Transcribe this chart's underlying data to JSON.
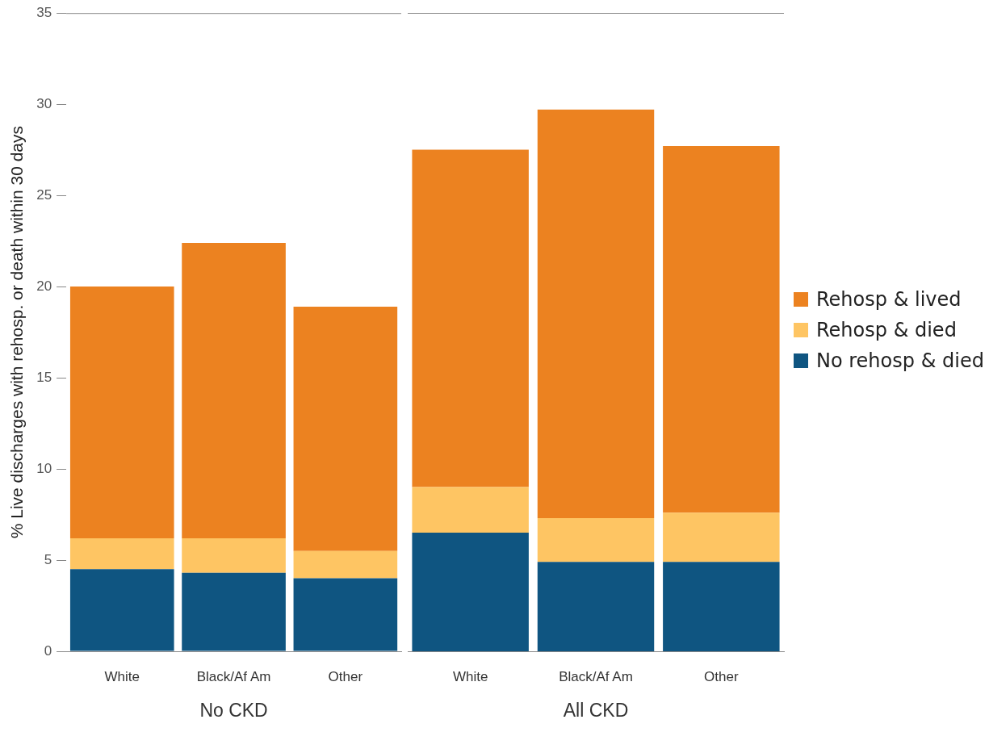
{
  "chart_data": [
    {
      "type": "bar",
      "stacked": true,
      "xlabel": "No CKD",
      "ylabel": "% Live discharges with rehosp. or death within 30 days",
      "categories": [
        "White",
        "Black/Af Am",
        "Other"
      ],
      "ylim": [
        0,
        35
      ],
      "yticks": [
        0,
        5,
        10,
        15,
        20,
        25,
        30,
        35
      ],
      "grid": false,
      "legend": false,
      "series": [
        {
          "color": "#0f5581",
          "values": [
            4.5,
            4.3,
            4.0
          ]
        },
        {
          "color": "#fec563",
          "values": [
            1.7,
            1.9,
            1.5
          ]
        },
        {
          "color": "#ec8220",
          "values": [
            13.8,
            16.2,
            13.4
          ]
        }
      ]
    },
    {
      "type": "bar",
      "stacked": true,
      "xlabel": "All CKD",
      "categories": [
        "White",
        "Black/Af Am",
        "Other"
      ],
      "ylim": [
        0,
        35
      ],
      "yticks": [
        0,
        5,
        10,
        15,
        20,
        25,
        30,
        35
      ],
      "tick_labels": "x",
      "grid": false,
      "legend": "right",
      "series": [
        {
          "name": "No rehosp & died",
          "color": "#0f5581",
          "values": [
            6.5,
            4.9,
            4.9
          ]
        },
        {
          "name": "Rehosp & died",
          "color": "#fec563",
          "values": [
            2.5,
            2.4,
            2.7
          ]
        },
        {
          "name": "Rehosp & lived",
          "color": "#ec8220",
          "values": [
            18.5,
            22.4,
            20.1
          ]
        }
      ]
    }
  ]
}
